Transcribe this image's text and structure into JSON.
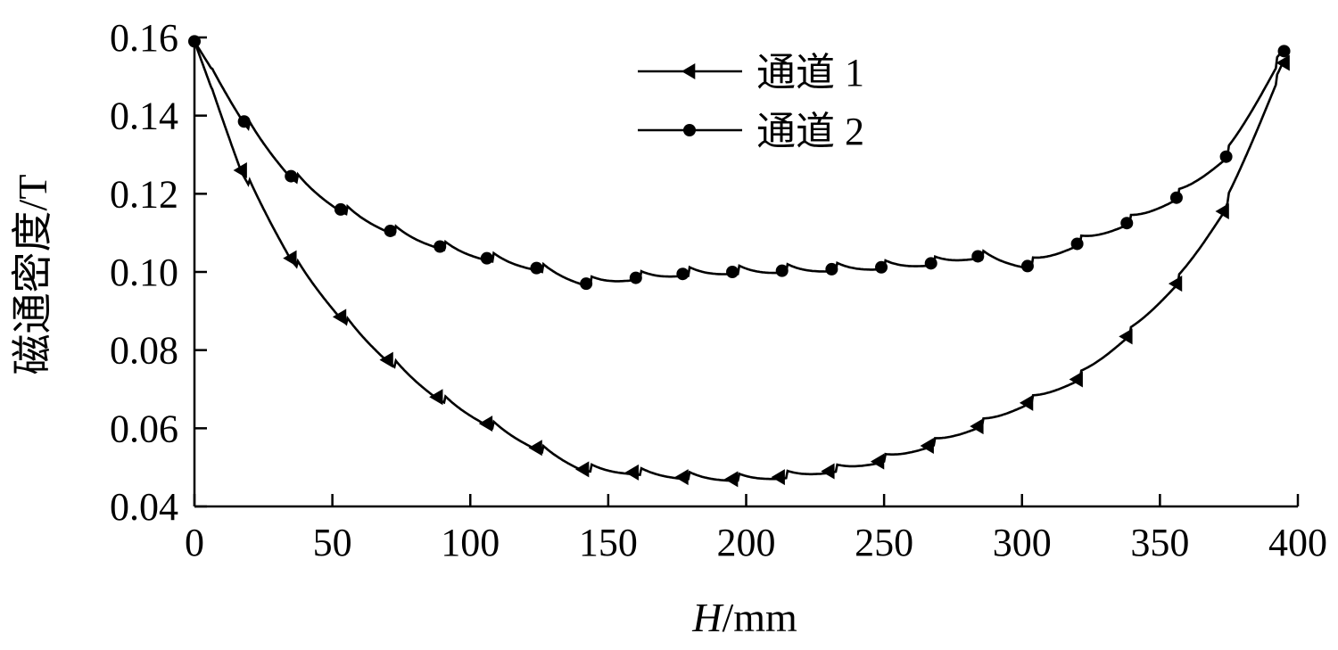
{
  "chart_data": {
    "type": "line",
    "xlabel_italic": "H",
    "xlabel_unit": "/mm",
    "ylabel": "磁通密度/T",
    "xlim": [
      0,
      400
    ],
    "ylim": [
      0.04,
      0.16
    ],
    "x_ticks": [
      "0",
      "50",
      "100",
      "150",
      "200",
      "250",
      "300",
      "350",
      "400"
    ],
    "y_ticks": [
      "0.04",
      "0.06",
      "0.08",
      "0.10",
      "0.12",
      "0.14",
      "0.16"
    ],
    "x_tick_values": [
      0,
      50,
      100,
      150,
      200,
      250,
      300,
      350,
      400
    ],
    "y_tick_values": [
      0.04,
      0.06,
      0.08,
      0.1,
      0.12,
      0.14,
      0.16
    ],
    "grid": false,
    "legend_position": "top-center",
    "series": [
      {
        "name": "通道 1",
        "marker": "triangle-left",
        "x": [
          0,
          17,
          35,
          53,
          70,
          88,
          106,
          124,
          141,
          159,
          177,
          195,
          212,
          230,
          248,
          266,
          284,
          302,
          320,
          338,
          356,
          373,
          395
        ],
        "y": [
          0.159,
          0.126,
          0.1035,
          0.0885,
          0.0775,
          0.068,
          0.0612,
          0.055,
          0.0495,
          0.0487,
          0.0475,
          0.047,
          0.0475,
          0.049,
          0.0515,
          0.0555,
          0.0605,
          0.0665,
          0.0725,
          0.0835,
          0.097,
          0.1155,
          0.1535
        ],
        "marker_x": [
          17,
          35,
          53,
          70,
          88,
          106,
          124,
          141,
          159,
          177,
          195,
          212,
          230,
          248,
          266,
          284,
          302,
          320,
          338,
          356,
          373,
          395
        ]
      },
      {
        "name": "通道 2",
        "marker": "circle",
        "x": [
          0,
          18,
          35,
          53,
          71,
          89,
          106,
          124,
          142,
          160,
          177,
          195,
          213,
          231,
          249,
          267,
          284,
          302,
          320,
          338,
          356,
          374,
          395
        ],
        "y": [
          0.159,
          0.1385,
          0.1245,
          0.116,
          0.1105,
          0.1065,
          0.1035,
          0.101,
          0.097,
          0.0985,
          0.0995,
          0.1,
          0.1003,
          0.1007,
          0.1012,
          0.1022,
          0.104,
          0.1015,
          0.1072,
          0.1125,
          0.119,
          0.1295,
          0.1565
        ],
        "marker_x": [
          0,
          18,
          35,
          53,
          71,
          89,
          106,
          124,
          142,
          160,
          177,
          195,
          213,
          231,
          249,
          267,
          284,
          302,
          320,
          338,
          356,
          374,
          395
        ]
      }
    ]
  }
}
